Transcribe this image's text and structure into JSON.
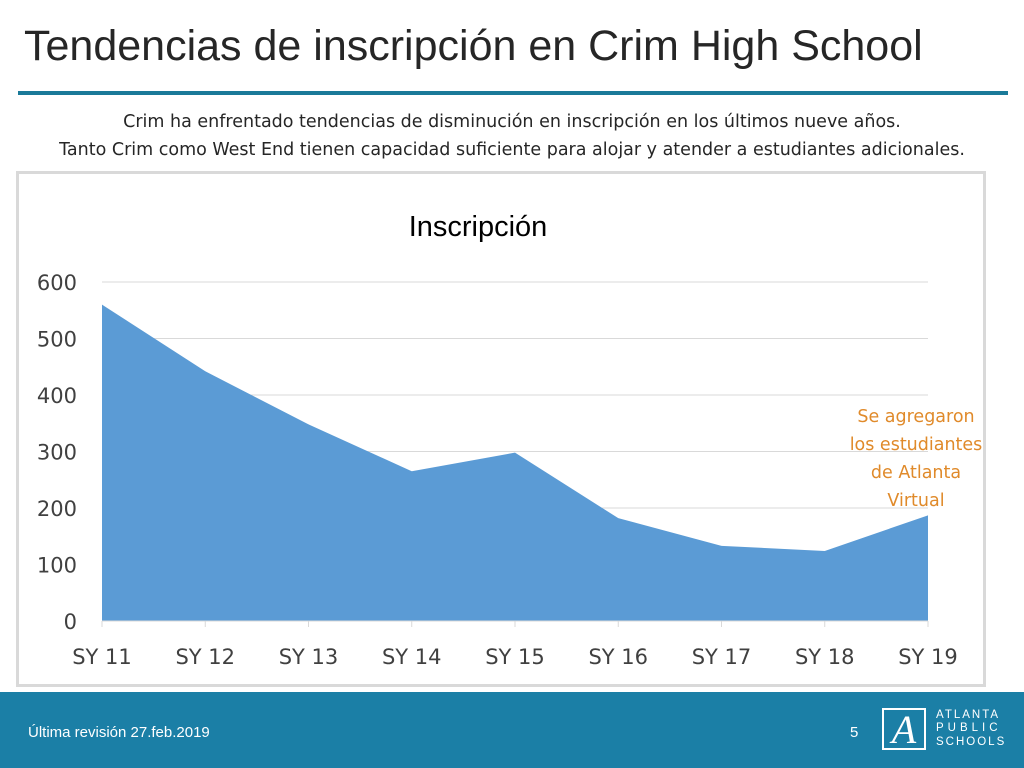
{
  "slide": {
    "title": "Tendencias de inscripción en Crim High School",
    "subtitle_line1": "Crim ha enfrentado tendencias de disminución en inscripción en los últimos nueve años.",
    "subtitle_line2": "Tanto Crim como West End tienen capacidad suficiente para alojar y atender a estudiantes adicionales."
  },
  "chart_data": {
    "type": "area",
    "title": "Inscripción",
    "categories": [
      "SY 11",
      "SY 12",
      "SY 13",
      "SY 14",
      "SY 15",
      "SY 16",
      "SY 17",
      "SY 18",
      "SY 19"
    ],
    "values": [
      560,
      442,
      348,
      265,
      298,
      182,
      133,
      124,
      187
    ],
    "ylim": [
      0,
      600
    ],
    "yticks": [
      "0",
      "100",
      "200",
      "300",
      "400",
      "500",
      "600"
    ],
    "grid": true,
    "fill_color": "#5b9bd5",
    "annotation": "Se agregaron los estudiantes de Atlanta Virtual"
  },
  "annotation_lines": [
    "Se agregaron",
    "los estudiantes",
    "de Atlanta",
    "Virtual"
  ],
  "footer": {
    "revision": "Última revisión 27.feb.2019",
    "page_number": "5",
    "logo_line1": "ATLANTA",
    "logo_line2": "PUBLIC",
    "logo_line3": "SCHOOLS",
    "logo_letter": "A"
  }
}
